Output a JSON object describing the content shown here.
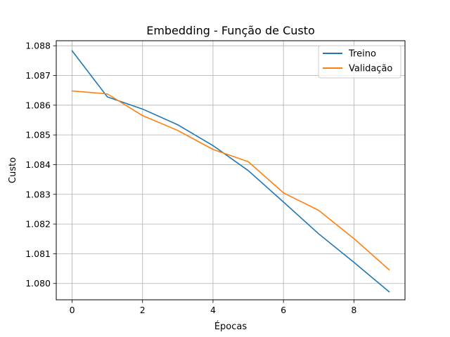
{
  "chart_data": {
    "type": "line",
    "title": "Embedding - Função de Custo",
    "xlabel": "Épocas",
    "ylabel": "Custo",
    "xlim": [
      -0.45,
      9.45
    ],
    "ylim": [
      1.07945,
      1.08817
    ],
    "xticks": [
      0,
      2,
      4,
      6,
      8
    ],
    "xtick_labels": [
      "0",
      "2",
      "4",
      "6",
      "8"
    ],
    "yticks": [
      1.08,
      1.081,
      1.082,
      1.083,
      1.084,
      1.085,
      1.086,
      1.087,
      1.088
    ],
    "ytick_labels": [
      "1.080",
      "1.081",
      "1.082",
      "1.083",
      "1.084",
      "1.085",
      "1.086",
      "1.087",
      "1.088"
    ],
    "grid": true,
    "legend_position": "top-right",
    "x": [
      0,
      1,
      2,
      3,
      4,
      5,
      6,
      7,
      8,
      9
    ],
    "series": [
      {
        "name": "Treino",
        "color": "#1f77b4",
        "values": [
          1.08783,
          1.08628,
          1.08587,
          1.08534,
          1.08464,
          1.0838,
          1.08274,
          1.08167,
          1.08071,
          1.07972
        ]
      },
      {
        "name": "Validação",
        "color": "#ff7f0e",
        "values": [
          1.08648,
          1.08638,
          1.08565,
          1.08515,
          1.08451,
          1.0841,
          1.08305,
          1.08246,
          1.08151,
          1.08046
        ]
      }
    ]
  }
}
